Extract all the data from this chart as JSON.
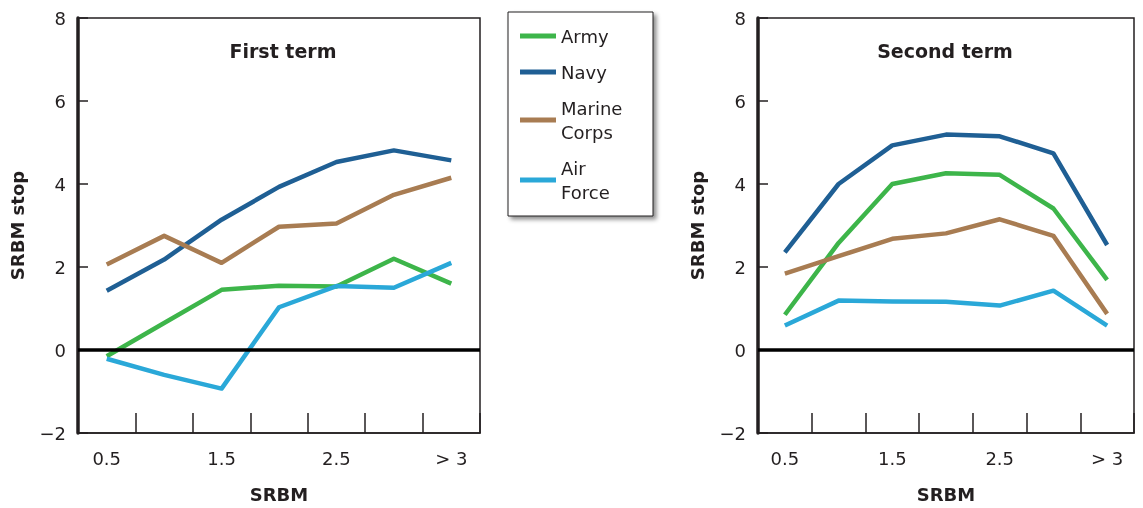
{
  "chart_data": [
    {
      "type": "line",
      "title": "First term",
      "xlabel": "SRBM",
      "ylabel": "SRBM stop",
      "categories": [
        "0.5",
        null,
        "1.5",
        null,
        "2.5",
        null,
        "> 3"
      ],
      "ylim": [
        -2,
        8
      ],
      "yticks": [
        -2,
        0,
        2,
        4,
        6,
        8
      ],
      "grid": false,
      "legend": "right",
      "marker": "none",
      "line_style": "solid",
      "ref_lines": [
        {
          "axis": "y",
          "value": 0,
          "color": "#000000"
        }
      ],
      "series": [
        {
          "name": "Army",
          "color": "#3db54a",
          "values": [
            -0.15,
            0.65,
            1.45,
            1.55,
            1.53,
            2.2,
            1.6
          ]
        },
        {
          "name": "Navy",
          "color": "#1f5f94",
          "values": [
            1.43,
            2.18,
            3.14,
            3.93,
            4.53,
            4.81,
            4.57
          ]
        },
        {
          "name": "Marine Corps",
          "color": "#a87c52",
          "values": [
            2.06,
            2.75,
            2.1,
            2.97,
            3.05,
            3.74,
            4.15
          ]
        },
        {
          "name": "Air Force",
          "color": "#2aa8d8",
          "values": [
            -0.21,
            -0.6,
            -0.93,
            1.03,
            1.54,
            1.5,
            2.1
          ]
        }
      ]
    },
    {
      "type": "line",
      "title": "Second term",
      "xlabel": "SRBM",
      "ylabel": "SRBM stop",
      "categories": [
        "0.5",
        null,
        "1.5",
        null,
        "2.5",
        null,
        "> 3"
      ],
      "ylim": [
        -2,
        8
      ],
      "yticks": [
        -2,
        0,
        2,
        4,
        6,
        8
      ],
      "grid": false,
      "marker": "none",
      "line_style": "solid",
      "ref_lines": [
        {
          "axis": "y",
          "value": 0,
          "color": "#000000"
        }
      ],
      "series": [
        {
          "color": "#3db54a",
          "values": [
            0.85,
            2.58,
            4.0,
            4.26,
            4.22,
            3.41,
            1.69
          ]
        },
        {
          "color": "#1f5f94",
          "values": [
            2.35,
            4.0,
            4.93,
            5.19,
            5.15,
            4.74,
            2.53
          ]
        },
        {
          "color": "#a87c52",
          "values": [
            1.84,
            2.26,
            2.68,
            2.81,
            3.15,
            2.75,
            0.87
          ]
        },
        {
          "color": "#2aa8d8",
          "values": [
            0.59,
            1.19,
            1.17,
            1.16,
            1.07,
            1.43,
            0.59
          ]
        }
      ]
    }
  ]
}
